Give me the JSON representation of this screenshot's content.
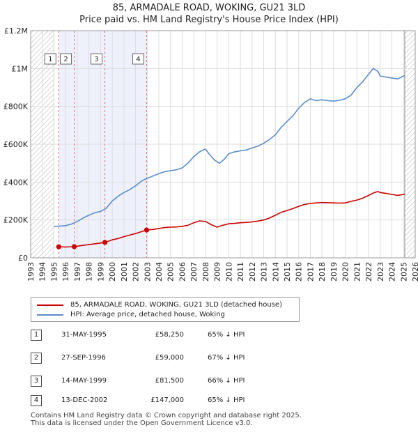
{
  "title_line1": "85, ARMADALE ROAD, WOKING, GU21 3LD",
  "title_line2": "Price paid vs. HM Land Registry's House Price Index (HPI)",
  "colors": {
    "price": "#cc0000",
    "hpi": "#5b8dc9",
    "shade": "#eef1fb",
    "hatch": "#aaaaaa",
    "vline": "#e07070"
  },
  "chart_data": {
    "type": "line",
    "title": "Price paid vs. HM Land Registry's House Price Index (HPI)",
    "xlim": [
      1993,
      2026
    ],
    "ylim": [
      0,
      1200000
    ],
    "ytick_values": [
      0,
      200000,
      400000,
      600000,
      800000,
      1000000,
      1200000
    ],
    "ytick_labels": [
      "£0",
      "£200K",
      "£400K",
      "£600K",
      "£800K",
      "£1M",
      "£1.2M"
    ],
    "xtick_labels": [
      "1993",
      "1994",
      "1995",
      "1996",
      "1997",
      "1998",
      "1999",
      "2000",
      "2001",
      "2002",
      "2003",
      "2004",
      "2005",
      "2006",
      "2007",
      "2008",
      "2009",
      "2010",
      "2011",
      "2012",
      "2013",
      "2014",
      "2015",
      "2016",
      "2017",
      "2018",
      "2019",
      "2020",
      "2021",
      "2022",
      "2023",
      "2024",
      "2025",
      "2026"
    ],
    "hatch_regions": [
      [
        1993,
        1995.0
      ],
      [
        2025.1,
        2026
      ]
    ],
    "series": [
      {
        "name": "85, ARMADALE ROAD, WOKING, GU21 3LD (detached house)",
        "key": "price",
        "x": [
          1995.41,
          1996.0,
          1996.74,
          1997.5,
          1998.5,
          1999.37,
          2000.0,
          2000.5,
          2001.0,
          2001.5,
          2002.0,
          2002.5,
          2002.95,
          2003.5,
          2004.0,
          2004.5,
          2005.0,
          2005.5,
          2006.0,
          2006.5,
          2007.0,
          2007.5,
          2008.0,
          2008.5,
          2009.0,
          2009.5,
          2010.0,
          2010.5,
          2011.0,
          2011.5,
          2012.0,
          2012.5,
          2013.0,
          2013.5,
          2014.0,
          2014.5,
          2015.0,
          2015.5,
          2016.0,
          2016.5,
          2017.0,
          2017.5,
          2018.0,
          2018.5,
          2019.0,
          2019.5,
          2020.0,
          2020.5,
          2021.0,
          2021.5,
          2022.0,
          2022.5,
          2022.8,
          2023.0,
          2023.5,
          2024.0,
          2024.5,
          2025.0,
          2025.1
        ],
        "values": [
          58250,
          57000,
          59000,
          66000,
          74000,
          81500,
          95000,
          102000,
          112000,
          120000,
          128000,
          138000,
          147000,
          150000,
          155000,
          160000,
          162000,
          163000,
          166000,
          172000,
          185000,
          195000,
          192000,
          175000,
          162000,
          172000,
          180000,
          182000,
          185000,
          187000,
          190000,
          194000,
          200000,
          210000,
          225000,
          240000,
          250000,
          260000,
          272000,
          282000,
          287000,
          290000,
          292000,
          291000,
          290000,
          289000,
          290000,
          298000,
          305000,
          315000,
          330000,
          345000,
          350000,
          345000,
          340000,
          335000,
          330000,
          335000,
          337000
        ]
      },
      {
        "name": "HPI: Average price, detached house, Woking",
        "key": "hpi",
        "x": [
          1995.0,
          1995.5,
          1996.0,
          1996.5,
          1997.0,
          1997.5,
          1998.0,
          1998.5,
          1999.0,
          1999.5,
          2000.0,
          2000.5,
          2001.0,
          2001.5,
          2002.0,
          2002.5,
          2003.0,
          2003.5,
          2004.0,
          2004.5,
          2005.0,
          2005.5,
          2006.0,
          2006.5,
          2007.0,
          2007.5,
          2008.0,
          2008.3,
          2008.8,
          2009.2,
          2009.6,
          2010.0,
          2010.5,
          2011.0,
          2011.5,
          2012.0,
          2012.5,
          2013.0,
          2013.5,
          2014.0,
          2014.5,
          2015.0,
          2015.5,
          2016.0,
          2016.5,
          2017.0,
          2017.5,
          2018.0,
          2018.5,
          2019.0,
          2019.5,
          2020.0,
          2020.5,
          2021.0,
          2021.5,
          2022.0,
          2022.4,
          2022.8,
          2023.0,
          2023.5,
          2024.0,
          2024.5,
          2025.0,
          2025.1
        ],
        "values": [
          165000,
          168000,
          170000,
          178000,
          192000,
          210000,
          225000,
          238000,
          245000,
          262000,
          300000,
          325000,
          345000,
          360000,
          380000,
          405000,
          420000,
          432000,
          445000,
          455000,
          460000,
          465000,
          475000,
          500000,
          535000,
          560000,
          575000,
          550000,
          515000,
          500000,
          520000,
          550000,
          560000,
          565000,
          570000,
          580000,
          590000,
          605000,
          625000,
          650000,
          690000,
          720000,
          750000,
          790000,
          820000,
          840000,
          830000,
          835000,
          830000,
          828000,
          832000,
          840000,
          860000,
          900000,
          930000,
          970000,
          1000000,
          985000,
          960000,
          955000,
          950000,
          945000,
          960000,
          965000
        ]
      }
    ],
    "transactions": [
      {
        "num": "1",
        "x": 1995.41,
        "value": 58250
      },
      {
        "num": "2",
        "x": 1996.74,
        "value": 59000
      },
      {
        "num": "3",
        "x": 1999.37,
        "value": 81500
      },
      {
        "num": "4",
        "x": 2002.95,
        "value": 147000
      }
    ],
    "legend_position": "bottom"
  },
  "legend": {
    "price_label": "85, ARMADALE ROAD, WOKING, GU21 3LD (detached house)",
    "hpi_label": "HPI: Average price, detached house, Woking"
  },
  "table": [
    {
      "num": "1",
      "date": "31-MAY-1995",
      "price": "£58,250",
      "hpi": "65% ↓ HPI"
    },
    {
      "num": "2",
      "date": "27-SEP-1996",
      "price": "£59,000",
      "hpi": "67% ↓ HPI"
    },
    {
      "num": "3",
      "date": "14-MAY-1999",
      "price": "£81,500",
      "hpi": "66% ↓ HPI"
    },
    {
      "num": "4",
      "date": "13-DEC-2002",
      "price": "£147,000",
      "hpi": "65% ↓ HPI"
    }
  ],
  "footer_line1": "Contains HM Land Registry data © Crown copyright and database right 2025.",
  "footer_line2": "This data is licensed under the Open Government Licence v3.0."
}
